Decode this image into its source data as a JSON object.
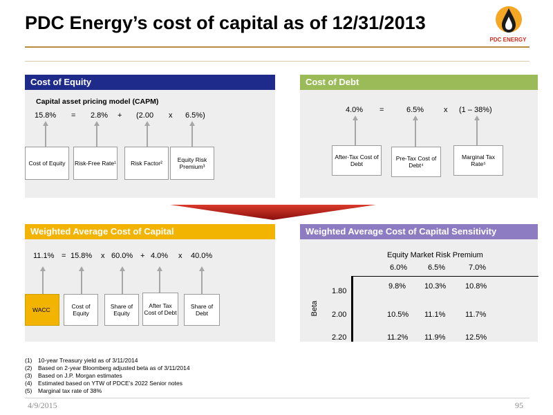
{
  "title": "PDC Energy’s cost of capital as of 12/31/2013",
  "logo": {
    "text": "PDC ENERGY"
  },
  "colors": {
    "rule": "#b58b3d",
    "blue_header": "#1f2b8a",
    "green_header": "#9bbb59",
    "gold_header": "#f2b400",
    "purple_header": "#8e7cc3",
    "panel": "#eeeeee",
    "chevron": "#b21a1a"
  },
  "cost_of_equity": {
    "header": "Cost of Equity",
    "subtitle": "Capital asset pricing model (CAPM)",
    "formula": [
      "15.8%",
      "=",
      "2.8%",
      "+",
      "(2.00",
      "x",
      "6.5%)"
    ],
    "boxes": [
      "Cost of Equity",
      "Risk-Free Rate¹",
      "Risk Factor²",
      "Equity Risk Premium³"
    ]
  },
  "cost_of_debt": {
    "header": "Cost of Debt",
    "formula": [
      "4.0%",
      "=",
      "6.5%",
      "x",
      "(1 – 38%)"
    ],
    "boxes": [
      "After-Tax Cost of Debt",
      "Pre-Tax Cost of Debt⁴",
      "Marginal Tax Rate⁵"
    ]
  },
  "wacc": {
    "header": "Weighted Average Cost of Capital",
    "formula": [
      "11.1%",
      "=",
      "15.8%",
      "x",
      "60.0%",
      "+",
      "4.0%",
      "x",
      "40.0%"
    ],
    "boxes": [
      "WACC",
      "Cost of Equity",
      "Share of Equity",
      "After Tax Cost of Debt",
      "Share of Debt"
    ]
  },
  "sensitivity": {
    "header": "Weighted Average Cost of Capital Sensitivity",
    "col_title": "Equity Market Risk Premium",
    "columns": [
      "6.0%",
      "6.5%",
      "7.0%"
    ],
    "row_title": "Beta",
    "rows": [
      {
        "beta": "1.80",
        "values": [
          "9.8%",
          "10.3%",
          "10.8%"
        ]
      },
      {
        "beta": "2.00",
        "values": [
          "10.5%",
          "11.1%",
          "11.7%"
        ]
      },
      {
        "beta": "2.20",
        "values": [
          "11.2%",
          "11.9%",
          "12.5%"
        ]
      }
    ]
  },
  "footnotes": [
    {
      "n": "(1)",
      "text": "10-year Treasury yield as of 3/11/2014"
    },
    {
      "n": "(2)",
      "text": "Based on 2-year Bloomberg adjusted beta as of 3/11/2014"
    },
    {
      "n": "(3)",
      "text": "Based on J.P. Morgan estimates"
    },
    {
      "n": "(4)",
      "text": "Estimated based on YTW of PDCE’s 2022 Senior notes"
    },
    {
      "n": "(5)",
      "text": "Marginal tax rate of 38%"
    }
  ],
  "footer": {
    "date": "4/9/2015",
    "page": "95"
  }
}
